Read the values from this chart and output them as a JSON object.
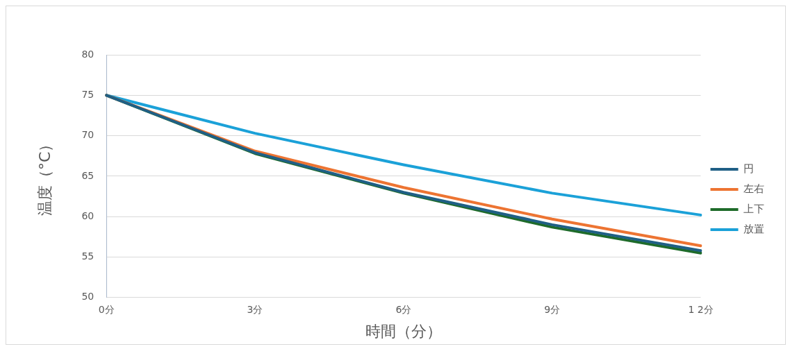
{
  "chart_data": {
    "type": "line",
    "xlabel": "時間（分）",
    "ylabel": "温度（°C）",
    "categories": [
      "0分",
      "3分",
      "6分",
      "9分",
      "1 2分"
    ],
    "series": [
      {
        "name": "円",
        "color": "#1f5f85",
        "values": [
          75,
          67.9,
          63.0,
          59.0,
          55.8
        ]
      },
      {
        "name": "左右",
        "color": "#ed7432",
        "values": [
          75,
          68.1,
          63.6,
          59.7,
          56.4
        ]
      },
      {
        "name": "上下",
        "color": "#1e6b2a",
        "values": [
          75,
          67.8,
          62.9,
          58.7,
          55.5
        ]
      },
      {
        "name": "放置",
        "color": "#1ba1d8",
        "values": [
          75,
          70.3,
          66.4,
          62.9,
          60.2
        ]
      }
    ],
    "ylim": [
      50,
      80
    ],
    "yticks": [
      50,
      55,
      60,
      65,
      70,
      75,
      80
    ],
    "grid": "y",
    "legend": "right",
    "marker": "none",
    "line_style": "solid"
  }
}
